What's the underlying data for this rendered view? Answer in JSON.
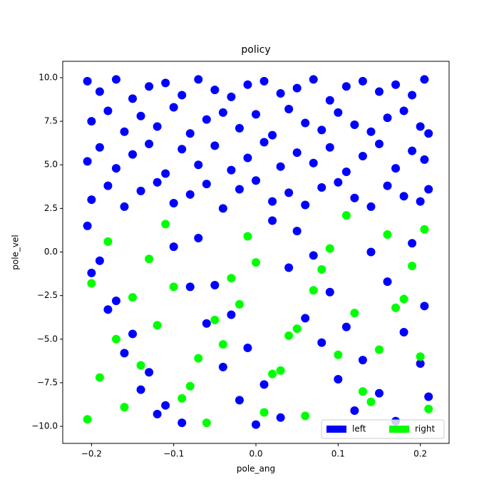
{
  "chart_data": {
    "type": "scatter",
    "title": "policy",
    "x_label": "pole_ang",
    "y_label": "pole_vel",
    "xlim": [
      -0.235,
      0.235
    ],
    "ylim": [
      -10.98,
      10.94
    ],
    "xticks": [
      {
        "value": -0.2,
        "label": "−0.2"
      },
      {
        "value": -0.1,
        "label": "−0.1"
      },
      {
        "value": 0,
        "label": "0.0"
      },
      {
        "value": 0.1,
        "label": "0.1"
      },
      {
        "value": 0.2,
        "label": "0.2"
      }
    ],
    "yticks": [
      {
        "value": -10,
        "label": "−10.0"
      },
      {
        "value": -7.5,
        "label": "−7.5"
      },
      {
        "value": -5,
        "label": "−5.0"
      },
      {
        "value": -2.5,
        "label": "−2.5"
      },
      {
        "value": 0,
        "label": "0.0"
      },
      {
        "value": 2.5,
        "label": "2.5"
      },
      {
        "value": 5,
        "label": "5.0"
      },
      {
        "value": 7.5,
        "label": "7.5"
      },
      {
        "value": 10,
        "label": "10.0"
      }
    ],
    "legend": "lower right",
    "series": [
      {
        "name": "left",
        "color": "#0000ff",
        "x": [
          -0.205,
          -0.19,
          -0.17,
          -0.15,
          -0.13,
          -0.11,
          -0.09,
          -0.07,
          -0.05,
          -0.03,
          -0.01,
          0.01,
          0.03,
          0.05,
          0.07,
          0.09,
          0.11,
          0.13,
          0.15,
          0.17,
          0.19,
          0.205,
          -0.2,
          -0.18,
          -0.16,
          -0.14,
          -0.12,
          -0.1,
          -0.08,
          -0.06,
          -0.04,
          -0.02,
          0.0,
          0.02,
          0.04,
          0.06,
          0.08,
          0.1,
          0.12,
          0.14,
          0.16,
          0.18,
          0.2,
          0.21,
          -0.205,
          -0.19,
          -0.17,
          -0.15,
          -0.13,
          -0.11,
          -0.09,
          -0.07,
          -0.05,
          -0.03,
          -0.01,
          0.01,
          0.03,
          0.05,
          0.07,
          0.09,
          0.11,
          0.13,
          0.15,
          0.17,
          0.19,
          0.205,
          -0.2,
          -0.18,
          -0.16,
          -0.14,
          -0.12,
          -0.1,
          -0.08,
          -0.06,
          -0.04,
          -0.02,
          0.0,
          0.02,
          0.04,
          0.06,
          0.08,
          0.1,
          0.12,
          0.14,
          0.16,
          0.18,
          0.2,
          0.21,
          -0.205,
          -0.19,
          -0.17,
          -0.15,
          -0.13,
          -0.11,
          -0.09,
          -0.07,
          -0.05,
          -0.03,
          -0.01,
          0.01,
          0.03,
          0.05,
          0.07,
          0.09,
          0.11,
          0.13,
          0.15,
          0.17,
          0.19,
          0.205,
          -0.2,
          -0.18,
          -0.16,
          -0.14,
          -0.12,
          -0.1,
          -0.08,
          -0.06,
          -0.04,
          -0.02,
          0.0,
          0.02,
          0.04,
          0.06,
          0.08,
          0.1,
          0.12,
          0.14,
          0.16,
          0.18,
          0.2,
          0.21
        ],
        "y": [
          9.8,
          9.2,
          9.9,
          8.8,
          9.5,
          9.7,
          9.0,
          9.9,
          9.3,
          8.9,
          9.6,
          9.8,
          9.1,
          9.4,
          9.9,
          8.7,
          9.5,
          9.8,
          9.2,
          9.6,
          9.0,
          9.9,
          7.5,
          8.1,
          6.9,
          7.8,
          7.2,
          8.3,
          6.8,
          7.6,
          8.0,
          7.1,
          7.9,
          6.7,
          8.2,
          7.4,
          7.0,
          8.0,
          7.3,
          6.9,
          7.7,
          8.1,
          7.2,
          6.8,
          5.2,
          6.0,
          4.8,
          5.6,
          6.2,
          4.5,
          5.9,
          5.0,
          6.1,
          4.7,
          5.4,
          6.3,
          4.9,
          5.7,
          5.1,
          6.0,
          4.6,
          5.5,
          6.2,
          4.8,
          5.8,
          5.3,
          3.0,
          3.8,
          2.6,
          3.5,
          4.0,
          2.8,
          3.3,
          3.9,
          2.5,
          3.6,
          4.1,
          2.9,
          3.4,
          2.7,
          3.7,
          4.0,
          3.1,
          2.6,
          3.8,
          3.2,
          2.9,
          3.6,
          1.5,
          -0.5,
          -2.8,
          -4.7,
          -6.9,
          -8.8,
          -9.8,
          0.8,
          -1.9,
          -3.6,
          -5.5,
          -7.6,
          -9.5,
          1.2,
          -0.2,
          -2.3,
          -4.3,
          -6.2,
          -8.1,
          -9.7,
          0.5,
          -3.1,
          -1.2,
          -3.3,
          -5.8,
          -7.9,
          -9.3,
          0.3,
          -2.0,
          -4.1,
          -6.6,
          -8.5,
          -9.9,
          1.8,
          -0.9,
          -3.8,
          -5.2,
          -7.3,
          -9.1,
          0.0,
          -1.7,
          -4.6,
          -6.4,
          -8.3
        ]
      },
      {
        "name": "right",
        "color": "#00ff00",
        "x": [
          -0.205,
          -0.19,
          -0.17,
          -0.15,
          -0.13,
          -0.11,
          -0.09,
          -0.07,
          -0.05,
          -0.03,
          -0.01,
          0.01,
          0.03,
          0.05,
          0.07,
          0.09,
          0.11,
          0.13,
          0.15,
          0.17,
          0.19,
          0.205,
          -0.2,
          -0.18,
          -0.16,
          -0.14,
          -0.12,
          -0.1,
          -0.08,
          -0.06,
          -0.04,
          -0.02,
          0.0,
          0.02,
          0.04,
          0.06,
          0.08,
          0.1,
          0.12,
          0.14,
          0.16,
          0.18,
          0.2,
          0.21
        ],
        "y": [
          -9.6,
          -7.2,
          -5.0,
          -2.6,
          -0.4,
          1.6,
          -8.4,
          -6.1,
          -3.9,
          -1.5,
          0.9,
          -9.2,
          -6.8,
          -4.4,
          -2.2,
          0.2,
          2.1,
          -8.0,
          -5.6,
          -3.2,
          -0.8,
          1.3,
          -1.8,
          0.6,
          -8.9,
          -6.5,
          -4.2,
          -2.0,
          -7.7,
          -9.8,
          -5.3,
          -3.0,
          -0.6,
          -7.0,
          -4.8,
          -9.4,
          -1.0,
          -5.9,
          -3.5,
          -8.6,
          1.0,
          -2.7,
          -6.0,
          -9.0
        ]
      }
    ]
  }
}
